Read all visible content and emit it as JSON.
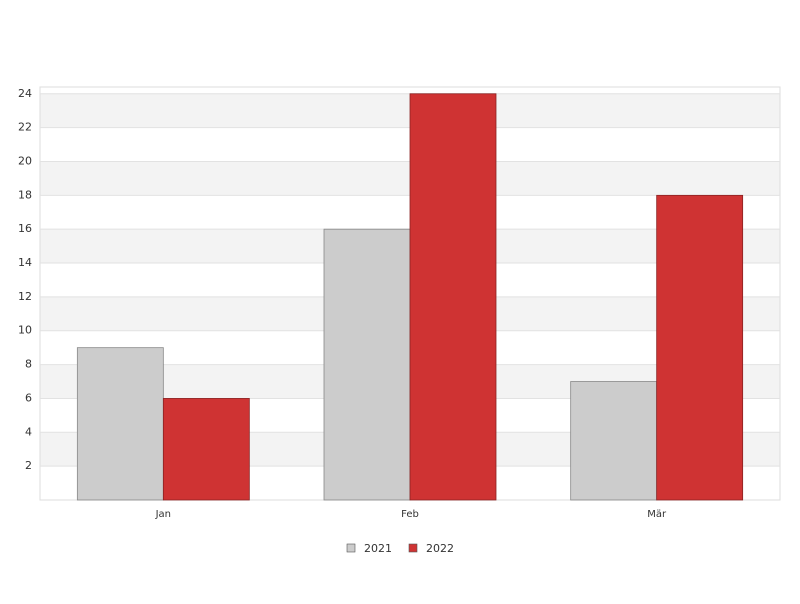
{
  "chart_data": {
    "type": "bar",
    "categories": [
      "Jan",
      "Feb",
      "Mär"
    ],
    "series": [
      {
        "name": "2021",
        "color": "#cccccc",
        "values": [
          9,
          16,
          7
        ]
      },
      {
        "name": "2022",
        "color": "#cf3333",
        "values": [
          6,
          24,
          18
        ]
      }
    ],
    "ylim": [
      0,
      24.4
    ],
    "yticks": [
      2,
      4,
      6,
      8,
      10,
      12,
      14,
      16,
      18,
      20,
      22,
      24
    ],
    "grid": true,
    "legend": "bottom"
  }
}
